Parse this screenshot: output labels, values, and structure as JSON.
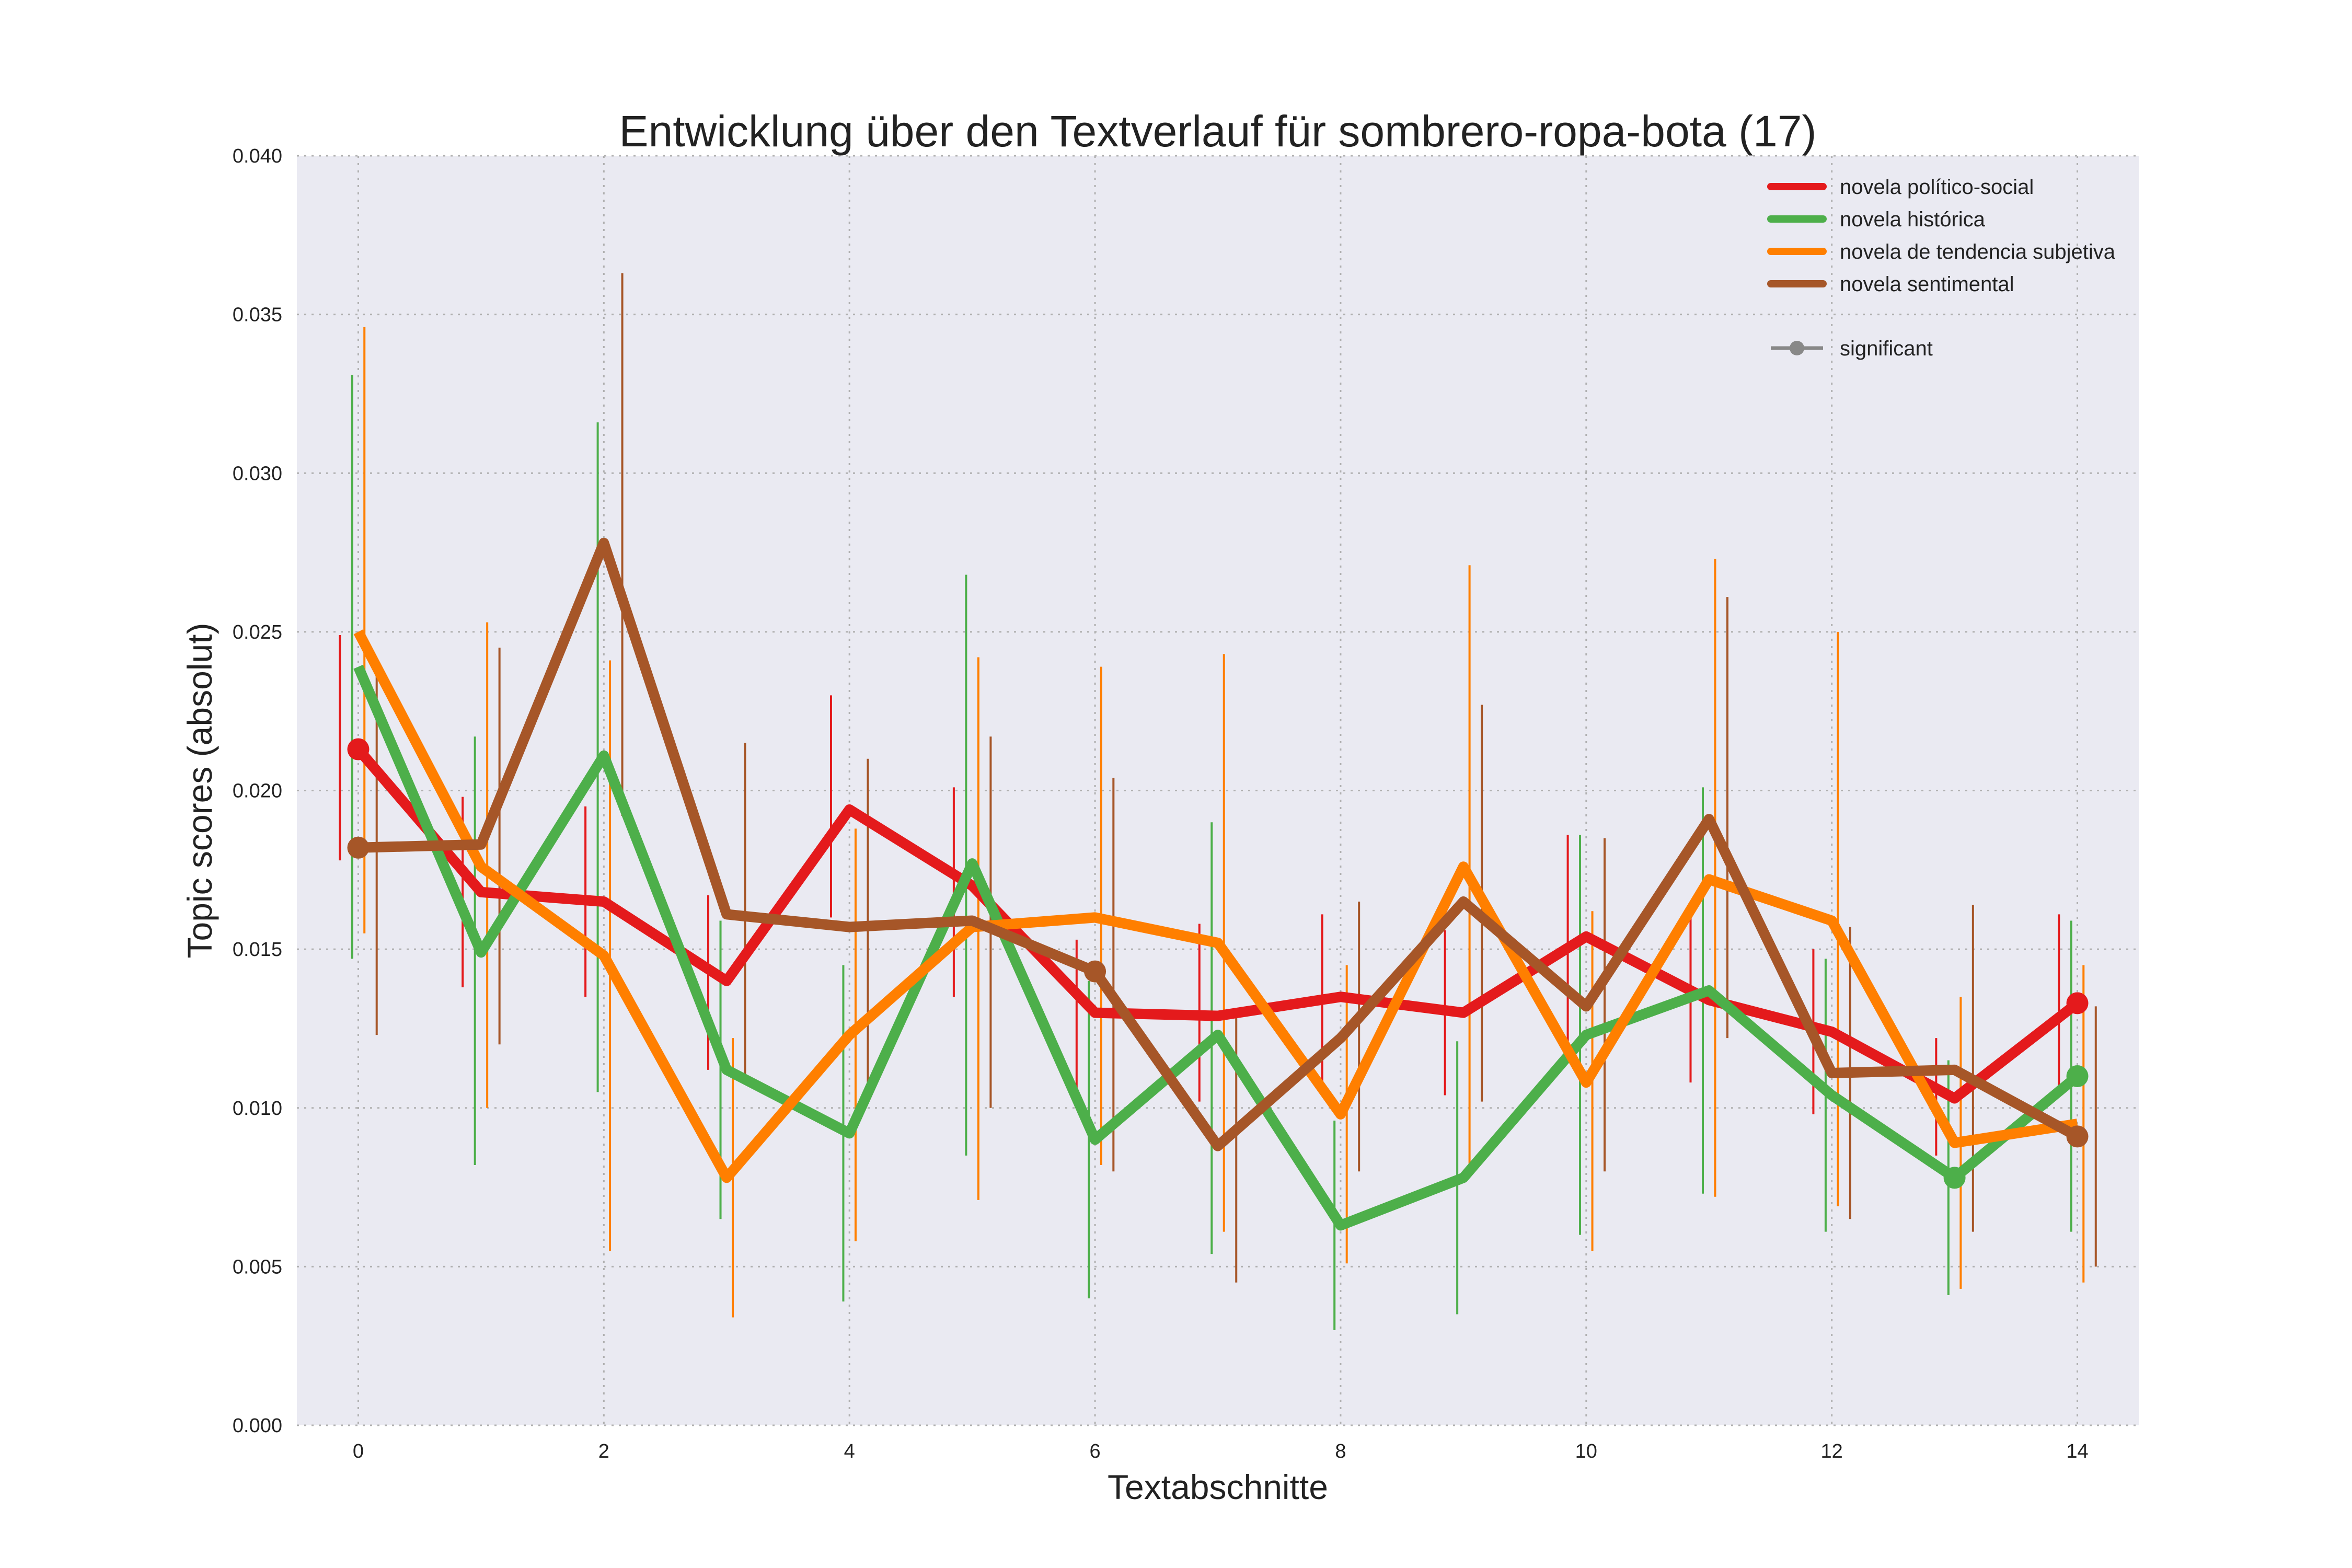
{
  "chart_data": {
    "type": "line",
    "title": "Entwicklung über den Textverlauf für sombrero-ropa-bota (17)",
    "xlabel": "Textabschnitte",
    "ylabel": "Topic scores (absolut)",
    "xlim": [
      -0.5,
      14.5
    ],
    "ylim": [
      0.0,
      0.04
    ],
    "xticks": [
      0,
      2,
      4,
      6,
      8,
      10,
      12,
      14
    ],
    "xtick_labels": [
      "0",
      "2",
      "4",
      "6",
      "8",
      "10",
      "12",
      "14"
    ],
    "yticks": [
      0.0,
      0.005,
      0.01,
      0.015,
      0.02,
      0.025,
      0.03,
      0.035,
      0.04
    ],
    "ytick_labels": [
      "0.000",
      "0.005",
      "0.010",
      "0.015",
      "0.020",
      "0.025",
      "0.030",
      "0.035",
      "0.040"
    ],
    "grid": true,
    "legend_position": "top-right",
    "x": [
      0,
      1,
      2,
      3,
      4,
      5,
      6,
      7,
      8,
      9,
      10,
      11,
      12,
      13,
      14
    ],
    "series": [
      {
        "name": "novela político-social",
        "color": "#e41a1c",
        "values": [
          0.0213,
          0.0168,
          0.0165,
          0.014,
          0.0194,
          0.017,
          0.013,
          0.0129,
          0.0135,
          0.013,
          0.0154,
          0.0134,
          0.0124,
          0.0103,
          0.0133
        ],
        "err_low": [
          0.0178,
          0.0138,
          0.0135,
          0.0112,
          0.016,
          0.0135,
          0.0102,
          0.0102,
          0.0108,
          0.0104,
          0.012,
          0.0108,
          0.0098,
          0.0085,
          0.0105
        ],
        "err_high": [
          0.0249,
          0.0198,
          0.0195,
          0.0167,
          0.023,
          0.0201,
          0.0153,
          0.0158,
          0.0161,
          0.0156,
          0.0186,
          0.016,
          0.015,
          0.0122,
          0.0161
        ],
        "significant": [
          0,
          14
        ]
      },
      {
        "name": "novela histórica",
        "color": "#4daf4a",
        "values": [
          0.0239,
          0.0149,
          0.0211,
          0.0112,
          0.0092,
          0.0177,
          0.009,
          0.0123,
          0.0063,
          0.0078,
          0.0123,
          0.0137,
          0.0104,
          0.0078,
          0.011
        ],
        "err_low": [
          0.0147,
          0.0082,
          0.0105,
          0.0065,
          0.0039,
          0.0085,
          0.004,
          0.0054,
          0.003,
          0.0035,
          0.006,
          0.0073,
          0.0061,
          0.0041,
          0.0061
        ],
        "err_high": [
          0.0331,
          0.0217,
          0.0316,
          0.0159,
          0.0145,
          0.0268,
          0.014,
          0.019,
          0.0096,
          0.0121,
          0.0186,
          0.0201,
          0.0147,
          0.0115,
          0.0159
        ],
        "significant": [
          13,
          14
        ]
      },
      {
        "name": "novela de tendencia subjetiva",
        "color": "#ff7f00",
        "values": [
          0.025,
          0.0176,
          0.0148,
          0.0078,
          0.0123,
          0.0157,
          0.016,
          0.0152,
          0.0098,
          0.0176,
          0.0108,
          0.0172,
          0.0159,
          0.0089,
          0.0095
        ],
        "err_low": [
          0.0155,
          0.01,
          0.0055,
          0.0034,
          0.0058,
          0.0071,
          0.0082,
          0.0061,
          0.0051,
          0.0082,
          0.0055,
          0.0072,
          0.0069,
          0.0043,
          0.0045
        ],
        "err_high": [
          0.0346,
          0.0253,
          0.0241,
          0.0122,
          0.0188,
          0.0242,
          0.0239,
          0.0243,
          0.0145,
          0.0271,
          0.0162,
          0.0273,
          0.025,
          0.0135,
          0.0145
        ],
        "significant": []
      },
      {
        "name": "novela sentimental",
        "color": "#a65628",
        "values": [
          0.0182,
          0.0183,
          0.0278,
          0.0161,
          0.0157,
          0.0159,
          0.0143,
          0.0088,
          0.0122,
          0.0165,
          0.0132,
          0.0191,
          0.0111,
          0.0112,
          0.0091
        ],
        "err_low": [
          0.0123,
          0.012,
          0.0192,
          0.0108,
          0.0103,
          0.01,
          0.008,
          0.0045,
          0.008,
          0.0102,
          0.008,
          0.0122,
          0.0065,
          0.0061,
          0.005
        ],
        "err_high": [
          0.024,
          0.0245,
          0.0363,
          0.0215,
          0.021,
          0.0217,
          0.0204,
          0.0131,
          0.0165,
          0.0227,
          0.0185,
          0.0261,
          0.0157,
          0.0164,
          0.0132
        ],
        "significant": [
          0,
          6,
          14
        ]
      }
    ],
    "legend_extra": {
      "label": "significant",
      "color": "#888888"
    }
  }
}
